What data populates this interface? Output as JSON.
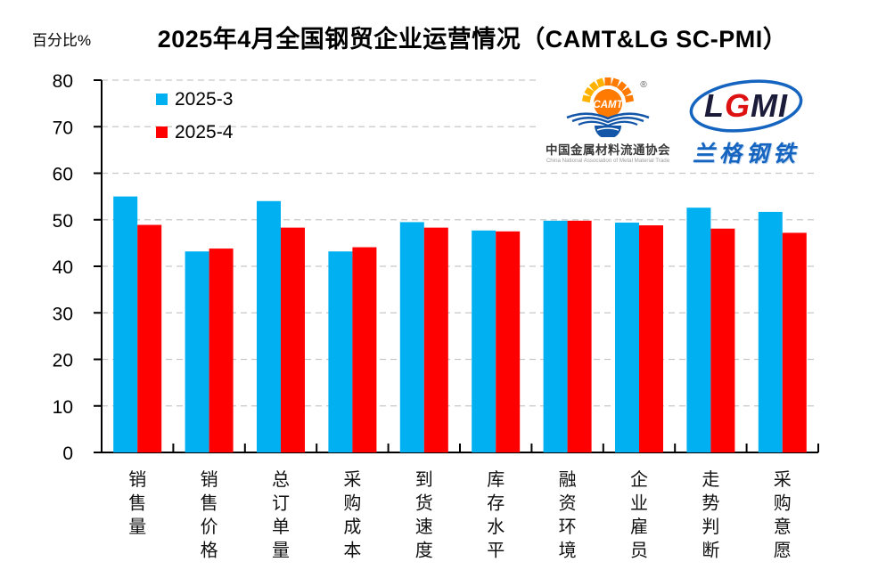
{
  "title": "2025年4月全国钢贸企业运营情况（CAMT&LG SC-PMI）",
  "ylabel": "百分比%",
  "legend": [
    {
      "label": "2025-3",
      "color": "#00b0f0"
    },
    {
      "label": "2025-4",
      "color": "#fe0000"
    }
  ],
  "logos": {
    "camt": {
      "abbr": "CAMT",
      "registered_mark": "®",
      "name_cn": "中国金属材料流通协会",
      "name_en": "China National Association of Metal Material Trade",
      "colors": {
        "sun": "#ff7a00",
        "rays": "#ffb300",
        "waves": "#1356a8"
      }
    },
    "lgmi": {
      "abbr": "LGMI",
      "abbr_colors": [
        "#1b1b3a",
        "#dd1111",
        "#1b1b3a",
        "#1b1b3a"
      ],
      "name_cn": "兰格钢铁",
      "colors": {
        "oval": "#1565c0"
      }
    }
  },
  "chart_data": {
    "type": "bar",
    "title": "2025年4月全国钢贸企业运营情况（CAMT&LG SC-PMI）",
    "xlabel": "",
    "ylabel": "百分比%",
    "categories": [
      "销售量",
      "销售价格",
      "总订单量",
      "采购成本",
      "到货速度",
      "库存水平",
      "融资环境",
      "企业雇员",
      "走势判断",
      "采购意愿"
    ],
    "series": [
      {
        "name": "2025-3",
        "color": "#00b0f0",
        "values": [
          55.0,
          43.2,
          54.0,
          43.2,
          49.5,
          47.7,
          49.8,
          49.4,
          52.6,
          51.7
        ]
      },
      {
        "name": "2025-4",
        "color": "#fe0000",
        "values": [
          48.9,
          43.8,
          48.3,
          44.1,
          48.3,
          47.5,
          49.8,
          48.8,
          48.1,
          47.2
        ]
      }
    ],
    "ylim": [
      0,
      80
    ],
    "yticks": [
      0,
      10,
      20,
      30,
      40,
      50,
      60,
      70,
      80
    ],
    "grid": "horizontal-dashed",
    "legend_position": "top-left"
  }
}
